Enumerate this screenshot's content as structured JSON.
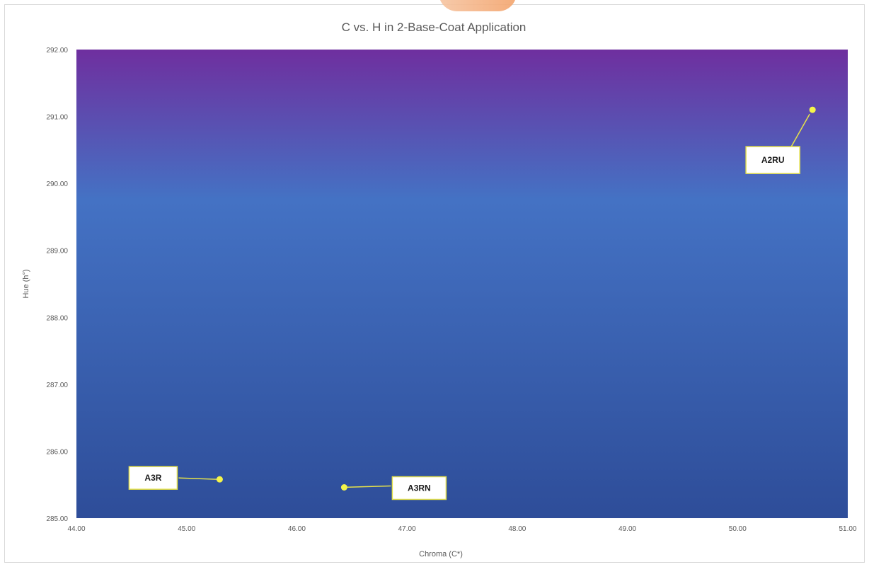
{
  "chart_data": {
    "type": "scatter",
    "title": "C vs. H in 2-Base-Coat Application",
    "xlabel": "Chroma (C*)",
    "ylabel": "Hue (h°)",
    "xlim": [
      44.0,
      51.0
    ],
    "ylim": [
      285.0,
      292.0
    ],
    "x_ticks": [
      "44.00",
      "45.00",
      "46.00",
      "47.00",
      "48.00",
      "49.00",
      "50.00",
      "51.00"
    ],
    "y_ticks": [
      "285.00",
      "286.00",
      "287.00",
      "288.00",
      "289.00",
      "290.00",
      "291.00",
      "292.00"
    ],
    "grid": false,
    "legend": "none",
    "points": [
      {
        "label": "A3R",
        "x": 45.3,
        "y": 285.58
      },
      {
        "label": "A3RN",
        "x": 46.43,
        "y": 285.46
      },
      {
        "label": "A2RU",
        "x": 50.68,
        "y": 291.1
      }
    ],
    "colors": {
      "background_top": "#6f2f9f",
      "background_mid": "#4472c4",
      "background_bottom": "#2e4d99",
      "marker": "#f5f54a",
      "label_border": "#e6e24a"
    }
  }
}
